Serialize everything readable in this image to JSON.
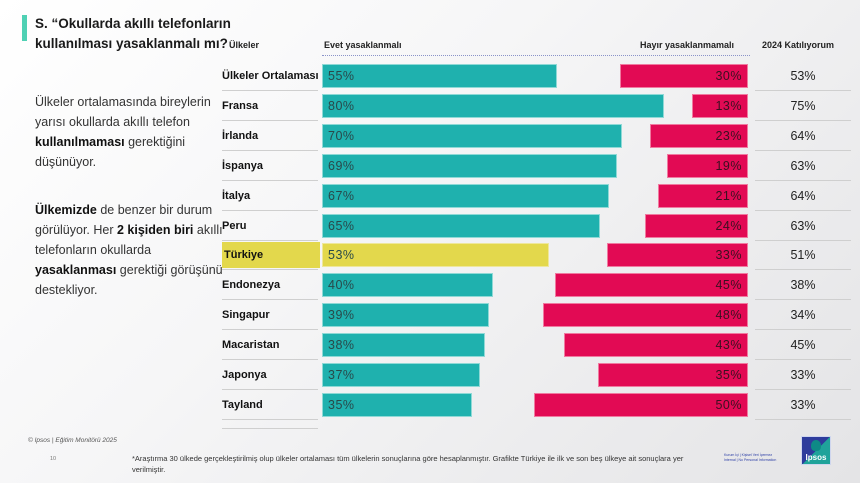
{
  "question": "S. “Okullarda akıllı telefonların kullanılması yasaklanmalı mı?",
  "summary1": {
    "t1": "Ülkeler ortalamasında bireylerin yarısı okullarda akıllı telefon ",
    "b1": "kullanılmaması",
    "t2": " gerektiğini düşünüyor."
  },
  "summary2": {
    "b1": "Ülkemizde",
    "t1": " de benzer bir durum görülüyor. Her ",
    "b2": "2 kişiden biri",
    "t2": " akıllı telefonların okullarda ",
    "b3": "yasaklanması",
    "t3": " gerektiği görüşünü destekliyor."
  },
  "footer": {
    "copyright": "© Ipsos | Eğitim Monitörü 2025",
    "page": "10",
    "footnote": "*Araştırma 30 ülkede gerçekleştirilmiş olup ülkeler ortalaması tüm ülkelerin sonuçlarına göre hesaplanmıştır. Grafikte Türkiye ile ilk ve son beş ülkeye ait sonuçlara yer verilmiştir.",
    "classification_line1": "Kurum İçi | Kişisel Veri İçermez",
    "classification_line2": "Internal | No Personal Information",
    "logo_text": "Ipsos"
  },
  "colors": {
    "yes": "#1fb1ae",
    "no": "#e20a54",
    "highlight": "#e3d84c",
    "accent": "#4fd1b4"
  },
  "chart_data": {
    "type": "bar",
    "title": "Okullarda akıllı telefonların kullanılması yasaklanmalı mı?",
    "column_headers": {
      "countries": "Ülkeler",
      "yes": "Evet yasaklanmalı",
      "no": "Hayır yasaklanmamalı",
      "agree2024": "2024 Katılıyorum"
    },
    "categories": [
      "Ülkeler Ortalaması",
      "Fransa",
      "İrlanda",
      "İspanya",
      "İtalya",
      "Peru",
      "Türkiye",
      "Endonezya",
      "Singapur",
      "Macaristan",
      "Japonya",
      "Tayland"
    ],
    "highlight": "Türkiye",
    "series": [
      {
        "name": "Evet yasaklanmalı",
        "values": [
          55,
          80,
          70,
          69,
          67,
          65,
          53,
          40,
          39,
          38,
          37,
          35
        ]
      },
      {
        "name": "Hayır yasaklanmamalı",
        "values": [
          30,
          13,
          23,
          19,
          21,
          24,
          33,
          45,
          48,
          43,
          35,
          50
        ]
      },
      {
        "name": "2024 Katılıyorum",
        "values": [
          53,
          75,
          64,
          63,
          64,
          63,
          51,
          38,
          34,
          45,
          33,
          33
        ]
      }
    ],
    "unit": "%",
    "xlim": [
      0,
      100
    ]
  }
}
